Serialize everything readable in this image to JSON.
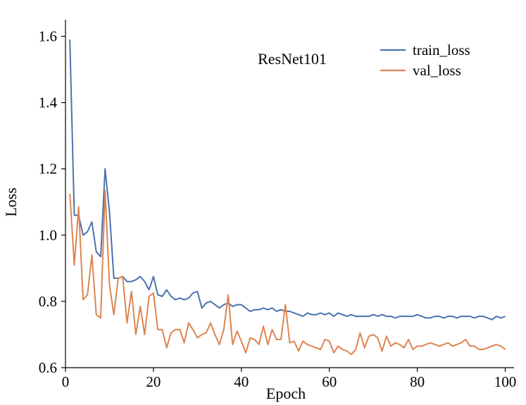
{
  "chart_data": {
    "type": "line",
    "title": "ResNet101",
    "xlabel": "Epoch",
    "ylabel": "Loss",
    "xlim": [
      0,
      102
    ],
    "ylim": [
      0.6,
      1.65
    ],
    "xticks": [
      0,
      20,
      40,
      60,
      80,
      100
    ],
    "xtick_labels": [
      "0",
      "20",
      "40",
      "60",
      "80",
      "100"
    ],
    "yticks": [
      0.6,
      0.8,
      1.0,
      1.2,
      1.4,
      1.6
    ],
    "ytick_labels": [
      "0.6",
      "0.8",
      "1.0",
      "1.2",
      "1.4",
      "1.6"
    ],
    "grid": false,
    "legend_position": "top-right",
    "x": [
      1,
      2,
      3,
      4,
      5,
      6,
      7,
      8,
      9,
      10,
      11,
      12,
      13,
      14,
      15,
      16,
      17,
      18,
      19,
      20,
      21,
      22,
      23,
      24,
      25,
      26,
      27,
      28,
      29,
      30,
      31,
      32,
      33,
      34,
      35,
      36,
      37,
      38,
      39,
      40,
      41,
      42,
      43,
      44,
      45,
      46,
      47,
      48,
      49,
      50,
      51,
      52,
      53,
      54,
      55,
      56,
      57,
      58,
      59,
      60,
      61,
      62,
      63,
      64,
      65,
      66,
      67,
      68,
      69,
      70,
      71,
      72,
      73,
      74,
      75,
      76,
      77,
      78,
      79,
      80,
      81,
      82,
      83,
      84,
      85,
      86,
      87,
      88,
      89,
      90,
      91,
      92,
      93,
      94,
      95,
      96,
      97,
      98,
      99,
      100
    ],
    "series": [
      {
        "name": "train_loss",
        "color": "#4c72b0",
        "values": [
          1.59,
          1.06,
          1.06,
          1.0,
          1.01,
          1.04,
          0.95,
          0.935,
          1.2,
          1.07,
          0.87,
          0.87,
          0.875,
          0.86,
          0.86,
          0.865,
          0.875,
          0.86,
          0.835,
          0.875,
          0.82,
          0.815,
          0.835,
          0.815,
          0.805,
          0.81,
          0.805,
          0.81,
          0.825,
          0.83,
          0.78,
          0.795,
          0.8,
          0.79,
          0.78,
          0.79,
          0.795,
          0.785,
          0.79,
          0.79,
          0.78,
          0.77,
          0.775,
          0.775,
          0.78,
          0.775,
          0.78,
          0.77,
          0.775,
          0.77,
          0.77,
          0.765,
          0.76,
          0.755,
          0.765,
          0.76,
          0.76,
          0.765,
          0.76,
          0.765,
          0.755,
          0.765,
          0.76,
          0.755,
          0.76,
          0.755,
          0.755,
          0.755,
          0.755,
          0.76,
          0.755,
          0.76,
          0.755,
          0.755,
          0.75,
          0.755,
          0.755,
          0.755,
          0.755,
          0.76,
          0.755,
          0.75,
          0.75,
          0.755,
          0.755,
          0.75,
          0.755,
          0.755,
          0.75,
          0.755,
          0.755,
          0.755,
          0.75,
          0.755,
          0.755,
          0.75,
          0.745,
          0.755,
          0.75,
          0.755
        ]
      },
      {
        "name": "val_loss",
        "color": "#dd8452",
        "values": [
          1.125,
          0.91,
          1.085,
          0.805,
          0.82,
          0.94,
          0.76,
          0.75,
          1.135,
          0.85,
          0.76,
          0.87,
          0.875,
          0.735,
          0.83,
          0.7,
          0.785,
          0.7,
          0.815,
          0.825,
          0.715,
          0.715,
          0.66,
          0.705,
          0.715,
          0.715,
          0.675,
          0.735,
          0.715,
          0.69,
          0.7,
          0.705,
          0.735,
          0.7,
          0.67,
          0.715,
          0.82,
          0.67,
          0.71,
          0.68,
          0.645,
          0.69,
          0.685,
          0.67,
          0.725,
          0.67,
          0.715,
          0.685,
          0.685,
          0.79,
          0.675,
          0.68,
          0.65,
          0.68,
          0.67,
          0.665,
          0.66,
          0.655,
          0.685,
          0.68,
          0.645,
          0.665,
          0.655,
          0.65,
          0.64,
          0.655,
          0.705,
          0.66,
          0.695,
          0.7,
          0.69,
          0.65,
          0.695,
          0.665,
          0.675,
          0.67,
          0.66,
          0.685,
          0.655,
          0.665,
          0.665,
          0.67,
          0.675,
          0.67,
          0.665,
          0.67,
          0.675,
          0.665,
          0.67,
          0.675,
          0.685,
          0.665,
          0.665,
          0.655,
          0.655,
          0.66,
          0.665,
          0.67,
          0.665,
          0.655
        ]
      }
    ]
  }
}
